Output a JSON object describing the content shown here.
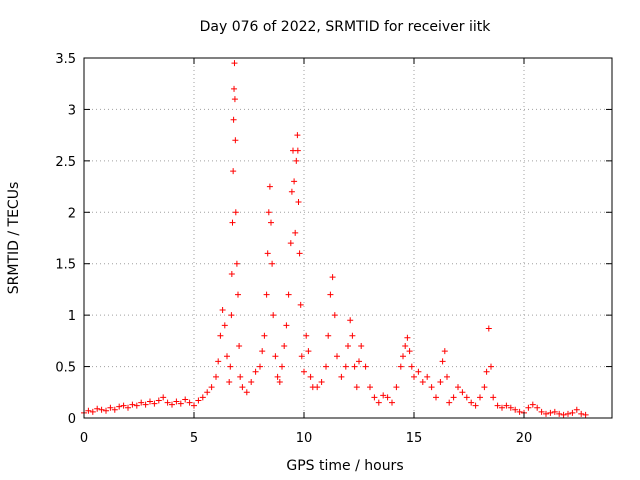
{
  "chart_data": {
    "type": "scatter",
    "title": "Day 076 of 2022, SRMTID for receiver iitk",
    "xlabel": "GPS time / hours",
    "ylabel": "SRMTID / TECUs",
    "xlim": [
      0,
      24
    ],
    "ylim": [
      0,
      3.5
    ],
    "xticks": [
      0,
      5,
      10,
      15,
      20
    ],
    "xtick_labels": [
      "0",
      "5",
      "10",
      "15",
      "20"
    ],
    "yticks": [
      0,
      0.5,
      1,
      1.5,
      2,
      2.5,
      3,
      3.5
    ],
    "ytick_labels": [
      "0",
      "0.5",
      "1",
      "1.5",
      "2",
      "2.5",
      "3",
      "3.5"
    ],
    "grid": true,
    "marker": "+",
    "color": "#ff0000",
    "series": [
      {
        "name": "SRMTID",
        "points": [
          [
            0.0,
            0.05
          ],
          [
            0.2,
            0.07
          ],
          [
            0.4,
            0.06
          ],
          [
            0.6,
            0.09
          ],
          [
            0.8,
            0.08
          ],
          [
            1.0,
            0.07
          ],
          [
            1.2,
            0.1
          ],
          [
            1.4,
            0.08
          ],
          [
            1.6,
            0.11
          ],
          [
            1.8,
            0.12
          ],
          [
            2.0,
            0.1
          ],
          [
            2.2,
            0.13
          ],
          [
            2.4,
            0.12
          ],
          [
            2.6,
            0.15
          ],
          [
            2.8,
            0.13
          ],
          [
            3.0,
            0.16
          ],
          [
            3.2,
            0.14
          ],
          [
            3.4,
            0.17
          ],
          [
            3.6,
            0.2
          ],
          [
            3.8,
            0.15
          ],
          [
            4.0,
            0.13
          ],
          [
            4.2,
            0.16
          ],
          [
            4.4,
            0.14
          ],
          [
            4.6,
            0.18
          ],
          [
            4.8,
            0.15
          ],
          [
            5.0,
            0.12
          ],
          [
            5.2,
            0.17
          ],
          [
            5.4,
            0.2
          ],
          [
            5.6,
            0.25
          ],
          [
            5.8,
            0.3
          ],
          [
            6.0,
            0.4
          ],
          [
            6.1,
            0.55
          ],
          [
            6.2,
            0.8
          ],
          [
            6.3,
            1.05
          ],
          [
            6.4,
            0.9
          ],
          [
            6.5,
            0.6
          ],
          [
            6.6,
            0.35
          ],
          [
            6.65,
            0.5
          ],
          [
            6.7,
            1.0
          ],
          [
            6.72,
            1.4
          ],
          [
            6.75,
            1.9
          ],
          [
            6.78,
            2.4
          ],
          [
            6.8,
            2.9
          ],
          [
            6.82,
            3.2
          ],
          [
            6.84,
            3.45
          ],
          [
            6.86,
            3.1
          ],
          [
            6.88,
            2.7
          ],
          [
            6.9,
            2.0
          ],
          [
            6.95,
            1.5
          ],
          [
            7.0,
            1.2
          ],
          [
            7.05,
            0.7
          ],
          [
            7.1,
            0.4
          ],
          [
            7.2,
            0.3
          ],
          [
            7.4,
            0.25
          ],
          [
            7.6,
            0.35
          ],
          [
            7.8,
            0.45
          ],
          [
            8.0,
            0.5
          ],
          [
            8.1,
            0.65
          ],
          [
            8.2,
            0.8
          ],
          [
            8.3,
            1.2
          ],
          [
            8.35,
            1.6
          ],
          [
            8.4,
            2.0
          ],
          [
            8.45,
            2.25
          ],
          [
            8.5,
            1.9
          ],
          [
            8.55,
            1.5
          ],
          [
            8.6,
            1.0
          ],
          [
            8.7,
            0.6
          ],
          [
            8.8,
            0.4
          ],
          [
            8.9,
            0.35
          ],
          [
            9.0,
            0.5
          ],
          [
            9.1,
            0.7
          ],
          [
            9.2,
            0.9
          ],
          [
            9.3,
            1.2
          ],
          [
            9.4,
            1.7
          ],
          [
            9.45,
            2.2
          ],
          [
            9.5,
            2.6
          ],
          [
            9.55,
            2.3
          ],
          [
            9.6,
            1.8
          ],
          [
            9.65,
            2.5
          ],
          [
            9.7,
            2.75
          ],
          [
            9.72,
            2.6
          ],
          [
            9.75,
            2.1
          ],
          [
            9.8,
            1.6
          ],
          [
            9.85,
            1.1
          ],
          [
            9.9,
            0.6
          ],
          [
            10.0,
            0.45
          ],
          [
            10.1,
            0.8
          ],
          [
            10.2,
            0.65
          ],
          [
            10.3,
            0.4
          ],
          [
            10.4,
            0.3
          ],
          [
            10.6,
            0.3
          ],
          [
            10.8,
            0.35
          ],
          [
            11.0,
            0.5
          ],
          [
            11.1,
            0.8
          ],
          [
            11.2,
            1.2
          ],
          [
            11.3,
            1.37
          ],
          [
            11.4,
            1.0
          ],
          [
            11.5,
            0.6
          ],
          [
            11.7,
            0.4
          ],
          [
            11.9,
            0.5
          ],
          [
            12.0,
            0.7
          ],
          [
            12.1,
            0.95
          ],
          [
            12.2,
            0.8
          ],
          [
            12.3,
            0.5
          ],
          [
            12.4,
            0.3
          ],
          [
            12.5,
            0.55
          ],
          [
            12.6,
            0.7
          ],
          [
            12.8,
            0.5
          ],
          [
            13.0,
            0.3
          ],
          [
            13.2,
            0.2
          ],
          [
            13.4,
            0.15
          ],
          [
            13.6,
            0.22
          ],
          [
            13.8,
            0.2
          ],
          [
            14.0,
            0.15
          ],
          [
            14.2,
            0.3
          ],
          [
            14.4,
            0.5
          ],
          [
            14.5,
            0.6
          ],
          [
            14.6,
            0.7
          ],
          [
            14.7,
            0.78
          ],
          [
            14.8,
            0.65
          ],
          [
            14.9,
            0.5
          ],
          [
            15.0,
            0.4
          ],
          [
            15.2,
            0.45
          ],
          [
            15.4,
            0.35
          ],
          [
            15.6,
            0.4
          ],
          [
            15.8,
            0.3
          ],
          [
            16.0,
            0.2
          ],
          [
            16.2,
            0.35
          ],
          [
            16.3,
            0.55
          ],
          [
            16.4,
            0.65
          ],
          [
            16.5,
            0.4
          ],
          [
            16.6,
            0.15
          ],
          [
            16.8,
            0.2
          ],
          [
            17.0,
            0.3
          ],
          [
            17.2,
            0.25
          ],
          [
            17.4,
            0.2
          ],
          [
            17.6,
            0.15
          ],
          [
            17.8,
            0.12
          ],
          [
            18.0,
            0.2
          ],
          [
            18.2,
            0.3
          ],
          [
            18.3,
            0.45
          ],
          [
            18.4,
            0.87
          ],
          [
            18.5,
            0.5
          ],
          [
            18.6,
            0.2
          ],
          [
            18.8,
            0.12
          ],
          [
            19.0,
            0.1
          ],
          [
            19.2,
            0.12
          ],
          [
            19.4,
            0.1
          ],
          [
            19.6,
            0.08
          ],
          [
            19.8,
            0.06
          ],
          [
            20.0,
            0.05
          ],
          [
            20.2,
            0.1
          ],
          [
            20.4,
            0.13
          ],
          [
            20.6,
            0.1
          ],
          [
            20.8,
            0.06
          ],
          [
            21.0,
            0.04
          ],
          [
            21.2,
            0.05
          ],
          [
            21.4,
            0.06
          ],
          [
            21.6,
            0.04
          ],
          [
            21.8,
            0.03
          ],
          [
            22.0,
            0.04
          ],
          [
            22.2,
            0.05
          ],
          [
            22.4,
            0.08
          ],
          [
            22.6,
            0.04
          ],
          [
            22.8,
            0.03
          ]
        ]
      }
    ]
  }
}
